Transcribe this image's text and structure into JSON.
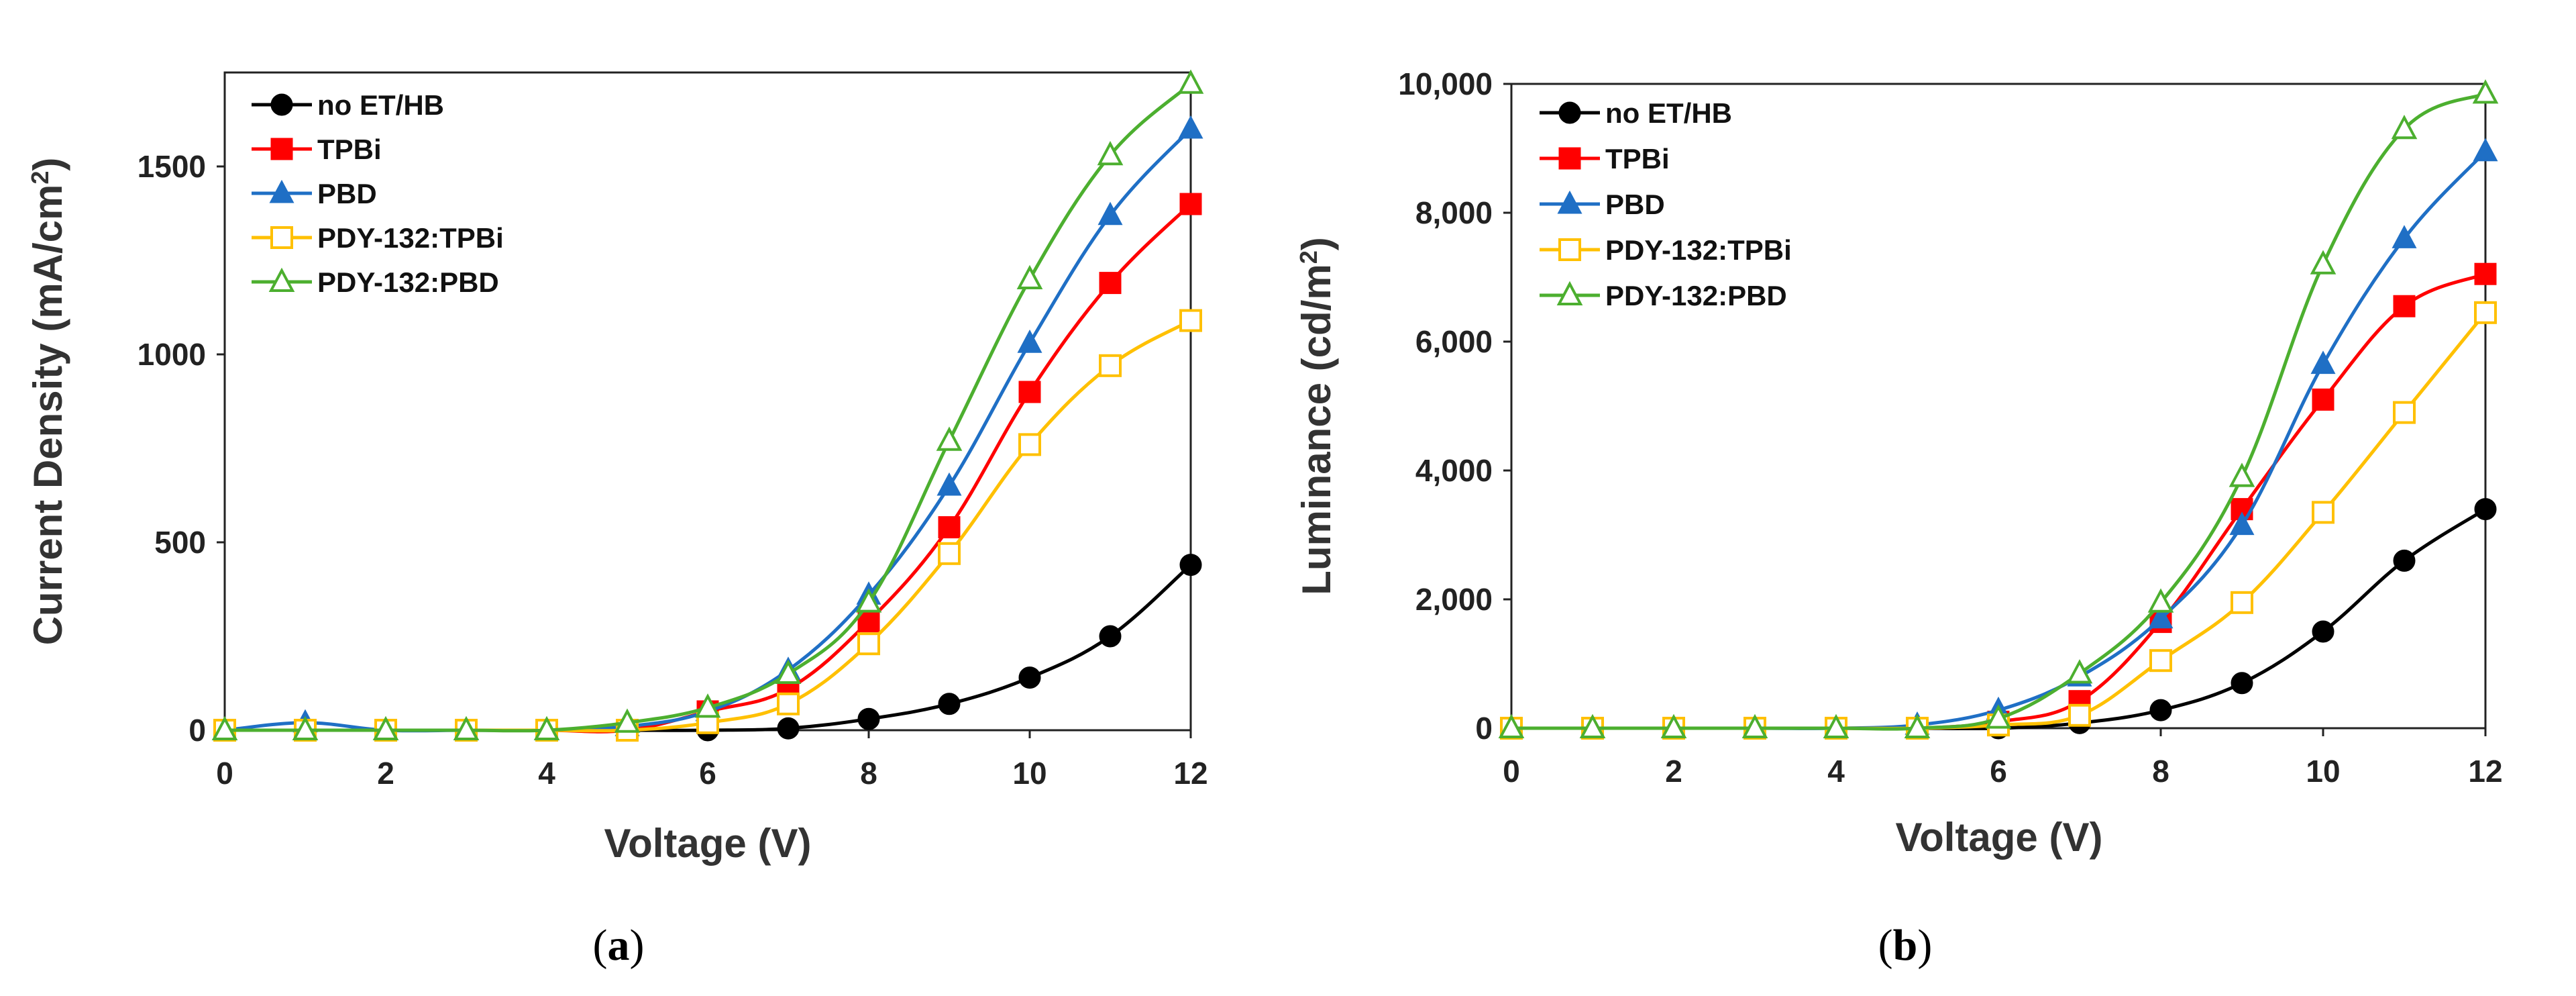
{
  "chart_data": [
    {
      "type": "line",
      "panel_label": "a",
      "xlabel": "Voltage (V)",
      "ylabel": "Current Density (mA/cm",
      "ylabel_sup": "2",
      "ylabel_tail": ")",
      "xlim": [
        0,
        12
      ],
      "ylim": [
        0,
        1750
      ],
      "xticks": [
        0,
        2,
        4,
        6,
        8,
        10,
        12
      ],
      "yticks": [
        0,
        500,
        1000,
        1500
      ],
      "ytick_labels": [
        "0",
        "500",
        "1000",
        "1500"
      ],
      "x": [
        0,
        1,
        2,
        3,
        4,
        5,
        6,
        7,
        8,
        9,
        10,
        11,
        12
      ],
      "legend_position": "top-left",
      "series": [
        {
          "name": "no ET/HB",
          "color": "#000000",
          "marker": "circle-filled",
          "values": [
            0,
            0,
            0,
            0,
            0,
            0,
            0,
            5,
            30,
            70,
            140,
            250,
            440
          ]
        },
        {
          "name": "TPBi",
          "color": "#ff0000",
          "marker": "square-filled",
          "values": [
            0,
            0,
            0,
            0,
            0,
            0,
            50,
            110,
            290,
            540,
            900,
            1190,
            1400
          ]
        },
        {
          "name": "PBD",
          "color": "#1f6fc5",
          "marker": "triangle-filled",
          "values": [
            0,
            20,
            0,
            0,
            0,
            10,
            50,
            160,
            360,
            650,
            1030,
            1370,
            1600
          ]
        },
        {
          "name": "PDY-132:TPBi",
          "color": "#ffc000",
          "marker": "square-open",
          "values": [
            0,
            0,
            0,
            0,
            0,
            0,
            20,
            70,
            230,
            470,
            760,
            970,
            1090
          ]
        },
        {
          "name": "PDY-132:PBD",
          "color": "#4caf2f",
          "marker": "triangle-open",
          "values": [
            0,
            0,
            0,
            0,
            0,
            20,
            60,
            150,
            340,
            770,
            1200,
            1530,
            1720
          ]
        }
      ]
    },
    {
      "type": "line",
      "panel_label": "b",
      "xlabel": "Voltage (V)",
      "ylabel": "Luminance (cd/m",
      "ylabel_sup": "2",
      "ylabel_tail": ")",
      "xlim": [
        0,
        12
      ],
      "ylim": [
        0,
        10000
      ],
      "xticks": [
        0,
        2,
        4,
        6,
        8,
        10,
        12
      ],
      "yticks": [
        0,
        2000,
        4000,
        6000,
        8000,
        10000
      ],
      "ytick_labels": [
        "0",
        "2,000",
        "4,000",
        "6,000",
        "8,000",
        "10,000"
      ],
      "x": [
        0,
        1,
        2,
        3,
        4,
        5,
        6,
        7,
        8,
        9,
        10,
        11,
        12
      ],
      "legend_position": "top-left",
      "series": [
        {
          "name": "no ET/HB",
          "color": "#000000",
          "marker": "circle-filled",
          "values": [
            0,
            0,
            0,
            0,
            0,
            0,
            0,
            80,
            280,
            700,
            1500,
            2600,
            3400
          ]
        },
        {
          "name": "TPBi",
          "color": "#ff0000",
          "marker": "square-filled",
          "values": [
            0,
            0,
            0,
            0,
            0,
            0,
            100,
            420,
            1650,
            3400,
            5100,
            6550,
            7050
          ]
        },
        {
          "name": "PBD",
          "color": "#1f6fc5",
          "marker": "triangle-filled",
          "values": [
            0,
            0,
            0,
            0,
            0,
            50,
            280,
            800,
            1700,
            3150,
            5650,
            7600,
            8950
          ]
        },
        {
          "name": "PDY-132:TPBi",
          "color": "#ffc000",
          "marker": "square-open",
          "values": [
            0,
            0,
            0,
            0,
            0,
            0,
            50,
            200,
            1050,
            1950,
            3350,
            4900,
            6450
          ]
        },
        {
          "name": "PDY-132:PBD",
          "color": "#4caf2f",
          "marker": "triangle-open",
          "values": [
            0,
            0,
            0,
            0,
            0,
            0,
            150,
            850,
            1950,
            3900,
            7200,
            9300,
            9850
          ]
        }
      ]
    }
  ]
}
